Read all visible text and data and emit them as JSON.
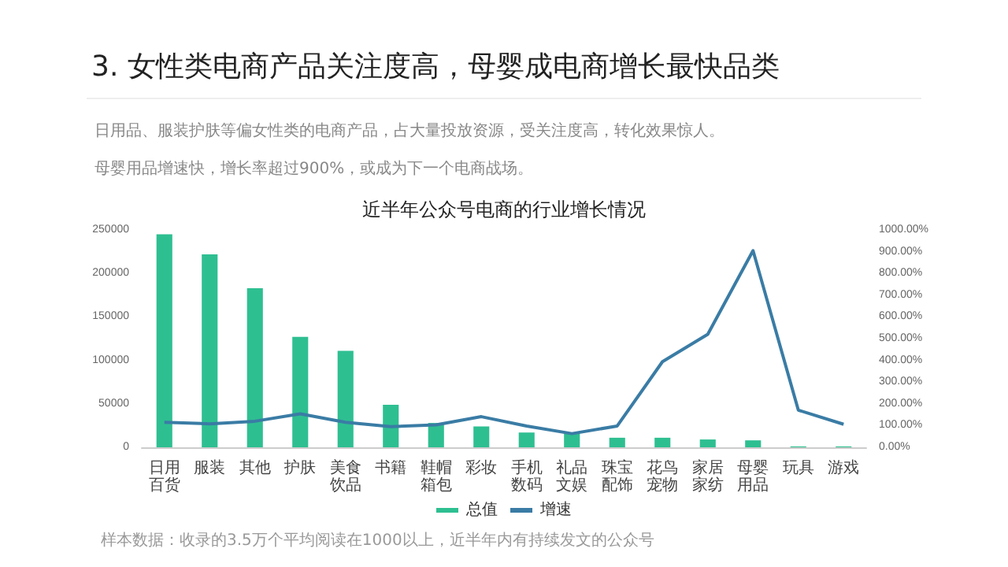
{
  "chart_data": {
    "type": "bar",
    "title": "3. 女性类电商产品关注度高，母婴成电商增长最快品类",
    "subtitle": "近半年公众号电商的行业增长情况",
    "annotations": [
      "日用品、服装护肤等偏女性类的电商产品，占大量投放资源，受关注度高，转化效果惊人。",
      "母婴用品增速快，增长率超过900%，或成为下一个电商战场。",
      "样本数据：收录的3.5万个平均阅读在1000以上，近半年内有持续发文的公众号"
    ],
    "categories": [
      "日用百货",
      "服装",
      "其他",
      "护肤",
      "美食饮品",
      "书籍",
      "鞋帽箱包",
      "彩妆",
      "手机数码",
      "礼品文娱",
      "珠宝配饰",
      "花鸟宠物",
      "家居家纺",
      "母婴用品",
      "玩具",
      "游戏"
    ],
    "series": [
      {
        "name": "总值",
        "color": "#2ebf91",
        "values": [
          245000,
          222000,
          183000,
          127000,
          111000,
          49000,
          28000,
          24000,
          17000,
          16000,
          11000,
          11000,
          9000,
          8000,
          1000,
          1000
        ]
      },
      {
        "name": "增速",
        "type": "line",
        "axis": "y2",
        "color": "#3a7ca5",
        "values": [
          115,
          108,
          120,
          154,
          115,
          95,
          103,
          141,
          98,
          63,
          98,
          394,
          520,
          905,
          171,
          106
        ]
      }
    ],
    "ylim": [
      0,
      250000
    ],
    "yticks": [
      0,
      50000,
      100000,
      150000,
      200000,
      250000
    ],
    "y2lim": [
      0,
      1000
    ],
    "y2ticks": [
      {
        "value": 0,
        "label": "0.00%"
      },
      {
        "value": 100,
        "label": "100.00%"
      },
      {
        "value": 200,
        "label": "200.00%"
      },
      {
        "value": 300,
        "label": "300.00%"
      },
      {
        "value": 400,
        "label": "400.00%"
      },
      {
        "value": 500,
        "label": "500.00%"
      },
      {
        "value": 600,
        "label": "600.00%"
      },
      {
        "value": 700,
        "label": "700.00%"
      },
      {
        "value": 800,
        "label": "800.00%"
      },
      {
        "value": 900,
        "label": "900.00%"
      },
      {
        "value": 1000,
        "label": "1000.00%"
      }
    ],
    "grid": false,
    "legend": "bottom",
    "marker": "none"
  }
}
